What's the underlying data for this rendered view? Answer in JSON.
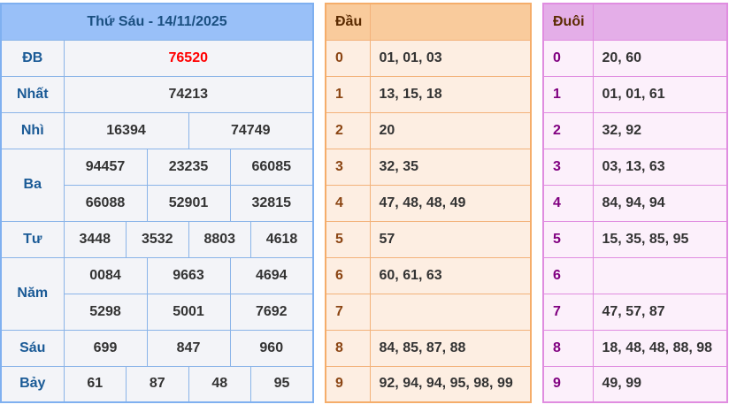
{
  "results": {
    "title": "Thứ Sáu - 14/11/2025",
    "rows": [
      {
        "label": "ĐB",
        "lines": [
          [
            "76520"
          ]
        ]
      },
      {
        "label": "Nhất",
        "lines": [
          [
            "74213"
          ]
        ]
      },
      {
        "label": "Nhì",
        "lines": [
          [
            "16394",
            "74749"
          ]
        ]
      },
      {
        "label": "Ba",
        "lines": [
          [
            "94457",
            "23235",
            "66085"
          ],
          [
            "66088",
            "52901",
            "32815"
          ]
        ]
      },
      {
        "label": "Tư",
        "lines": [
          [
            "3448",
            "3532",
            "8803",
            "4618"
          ]
        ]
      },
      {
        "label": "Năm",
        "lines": [
          [
            "0084",
            "9663",
            "4694"
          ],
          [
            "5298",
            "5001",
            "7692"
          ]
        ]
      },
      {
        "label": "Sáu",
        "lines": [
          [
            "699",
            "847",
            "960"
          ]
        ]
      },
      {
        "label": "Bảy",
        "lines": [
          [
            "61",
            "87",
            "48",
            "95"
          ]
        ]
      }
    ]
  },
  "dau": {
    "header": "Đầu",
    "rows": [
      {
        "d": "0",
        "v": "01, 01, 03"
      },
      {
        "d": "1",
        "v": "13, 15, 18"
      },
      {
        "d": "2",
        "v": "20"
      },
      {
        "d": "3",
        "v": "32, 35"
      },
      {
        "d": "4",
        "v": "47, 48, 48, 49"
      },
      {
        "d": "5",
        "v": "57"
      },
      {
        "d": "6",
        "v": "60, 61, 63"
      },
      {
        "d": "7",
        "v": ""
      },
      {
        "d": "8",
        "v": "84, 85, 87, 88"
      },
      {
        "d": "9",
        "v": "92, 94, 94, 95, 98, 99"
      }
    ]
  },
  "duoi": {
    "header": "Đuôi",
    "rows": [
      {
        "d": "0",
        "v": "20, 60"
      },
      {
        "d": "1",
        "v": "01, 01, 61"
      },
      {
        "d": "2",
        "v": "32, 92"
      },
      {
        "d": "3",
        "v": "03, 13, 63"
      },
      {
        "d": "4",
        "v": "84, 94, 94"
      },
      {
        "d": "5",
        "v": "15, 35, 85, 95"
      },
      {
        "d": "6",
        "v": ""
      },
      {
        "d": "7",
        "v": "47, 57, 87"
      },
      {
        "d": "8",
        "v": "18, 48, 48, 88, 98"
      },
      {
        "d": "9",
        "v": "49, 99"
      }
    ]
  },
  "colors": {
    "special_prize": "#ff0000",
    "results_header": "#99c0f8",
    "dau_header": "#f9cb9c",
    "duoi_header": "#e4aee8"
  }
}
